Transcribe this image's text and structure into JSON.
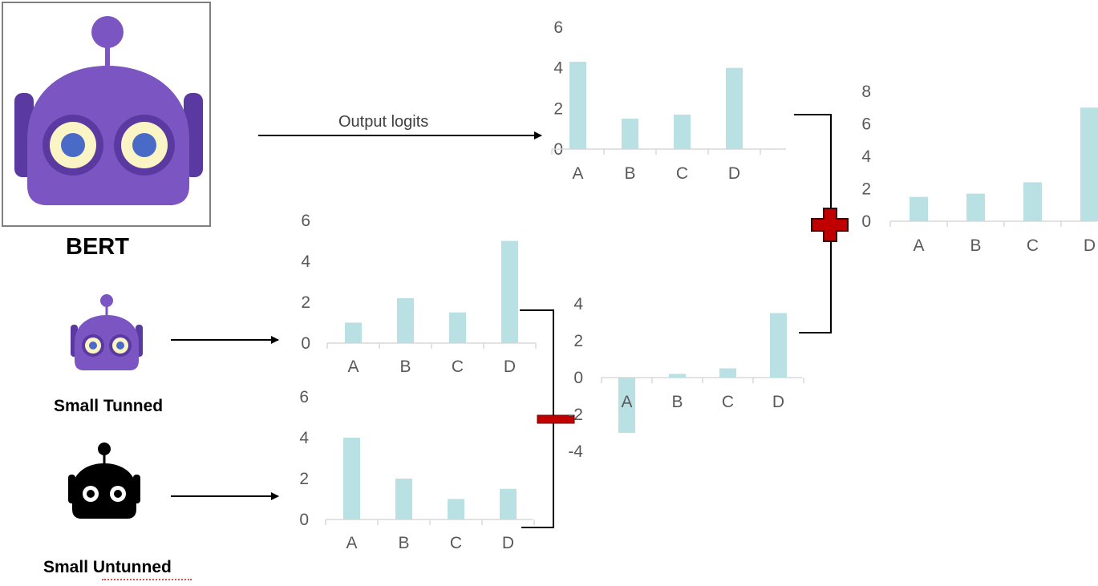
{
  "labels": {
    "bert": "BERT",
    "small_tuned": "Small Tunned",
    "small_untuned": "Small Untunned",
    "arrow": "Output logits"
  },
  "colors": {
    "bar": "#b9e0e3",
    "robot_purple": "#7b55c2",
    "robot_dark_purple": "#5a3aa0",
    "operator_red": "#c00000"
  },
  "icons": [
    "bert-robot-icon",
    "small-tuned-robot-icon",
    "small-untuned-robot-icon",
    "plus-operator-icon",
    "minus-operator-icon"
  ],
  "chart_data": [
    {
      "id": "bert",
      "type": "bar",
      "categories": [
        "A",
        "B",
        "C",
        "D"
      ],
      "values": [
        4.3,
        1.5,
        1.7,
        4.0
      ],
      "ylim": [
        0,
        6
      ],
      "yticks": [
        0,
        2,
        4,
        6
      ]
    },
    {
      "id": "small_tuned",
      "type": "bar",
      "categories": [
        "A",
        "B",
        "C",
        "D"
      ],
      "values": [
        1.0,
        2.2,
        1.5,
        5.0
      ],
      "ylim": [
        0,
        6
      ],
      "yticks": [
        0,
        2,
        4,
        6
      ]
    },
    {
      "id": "small_untuned",
      "type": "bar",
      "categories": [
        "A",
        "B",
        "C",
        "D"
      ],
      "values": [
        4.0,
        2.0,
        1.0,
        1.5
      ],
      "ylim": [
        0,
        6
      ],
      "yticks": [
        0,
        2,
        4,
        6
      ]
    },
    {
      "id": "difference",
      "type": "bar",
      "categories": [
        "A",
        "B",
        "C",
        "D"
      ],
      "values": [
        -3.0,
        0.2,
        0.5,
        3.5
      ],
      "ylim": [
        -4,
        4
      ],
      "yticks": [
        -4,
        -2,
        0,
        2,
        4
      ]
    },
    {
      "id": "sum",
      "type": "bar",
      "categories": [
        "A",
        "B",
        "C",
        "D"
      ],
      "values": [
        1.5,
        1.7,
        2.4,
        7.0
      ],
      "ylim": [
        0,
        8
      ],
      "yticks": [
        0,
        2,
        4,
        6,
        8
      ]
    }
  ]
}
